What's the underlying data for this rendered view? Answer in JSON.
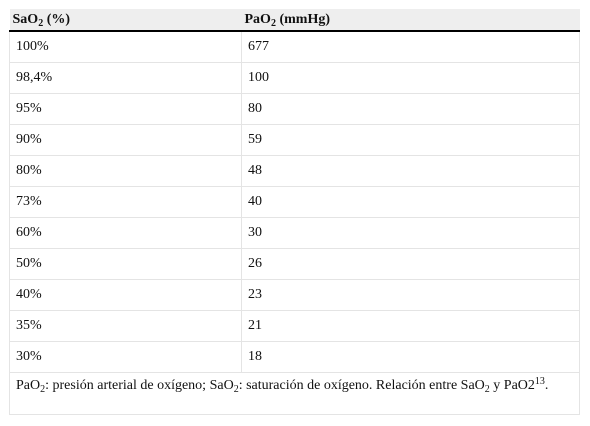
{
  "table": {
    "headers": [
      {
        "base": "SaO",
        "sub": "2",
        "rest": " (%)"
      },
      {
        "base": "PaO",
        "sub": "2",
        "rest": " (mmHg)"
      }
    ],
    "rows": [
      [
        "100%",
        "677"
      ],
      [
        "98,4%",
        "100"
      ],
      [
        "95%",
        "80"
      ],
      [
        "90%",
        "59"
      ],
      [
        "80%",
        "48"
      ],
      [
        "73%",
        "40"
      ],
      [
        "60%",
        "30"
      ],
      [
        "50%",
        "26"
      ],
      [
        "40%",
        "23"
      ],
      [
        "35%",
        "21"
      ],
      [
        "30%",
        "18"
      ]
    ],
    "footnote": {
      "p1": "PaO",
      "s1": "2",
      "p2": ": presión arterial de oxígeno; SaO",
      "s2": "2",
      "p3": ": saturación de oxígeno. Relación entre SaO",
      "s3": "2",
      "p4": " y PaO2",
      "sup": "13",
      "p5": "."
    }
  }
}
